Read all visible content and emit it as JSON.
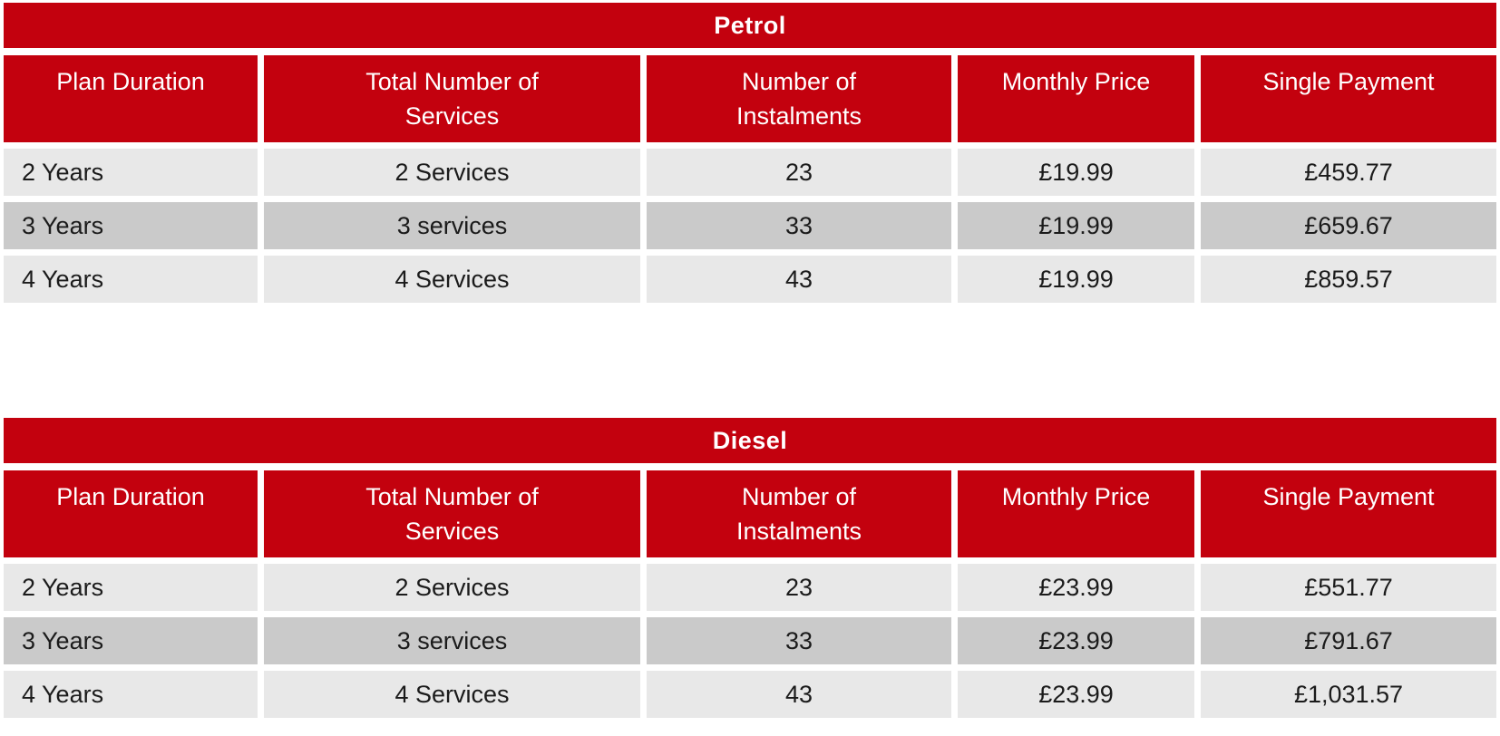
{
  "colors": {
    "accent_red": "#C3010E",
    "row_light": "#E8E8E8",
    "row_dark": "#CACACA",
    "header_text": "#FFFFFF",
    "body_text": "#1B1B1B"
  },
  "tables": [
    {
      "title": "Petrol",
      "headers": [
        "Plan Duration",
        "Total Number of Services",
        "Number of Instalments",
        "Monthly Price",
        "Single Payment"
      ],
      "rows": [
        [
          "2 Years",
          "2 Services",
          "23",
          "£19.99",
          "£459.77"
        ],
        [
          "3 Years",
          "3 services",
          "33",
          "£19.99",
          "£659.67"
        ],
        [
          "4 Years",
          "4 Services",
          "43",
          "£19.99",
          "£859.57"
        ]
      ]
    },
    {
      "title": "Diesel",
      "headers": [
        "Plan Duration",
        "Total Number of Services",
        "Number of Instalments",
        "Monthly Price",
        "Single Payment"
      ],
      "rows": [
        [
          "2 Years",
          "2 Services",
          "23",
          "£23.99",
          "£551.77"
        ],
        [
          "3 Years",
          "3 services",
          "33",
          "£23.99",
          "£791.67"
        ],
        [
          "4 Years",
          "4 Services",
          "43",
          "£23.99",
          "£1,031.57"
        ]
      ]
    }
  ]
}
